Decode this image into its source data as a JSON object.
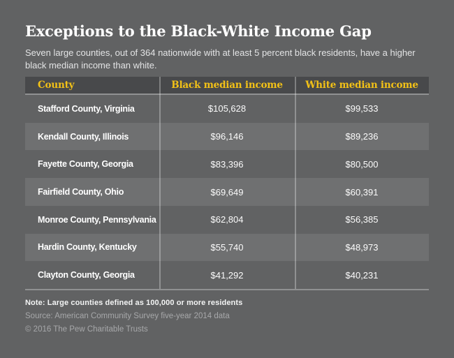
{
  "page": {
    "title": "Exceptions to the Black-White Income Gap",
    "subtitle": "Seven large counties, out of 364 nationwide with at least 5 percent black residents, have a higher black median income than white."
  },
  "colors": {
    "background": "#616263",
    "header_bg": "#48494b",
    "row_alt_bg": "#6f7071",
    "accent_yellow": "#f2c117",
    "title_text": "#ffffff",
    "muted_text": "#a7a8aa",
    "separator": "#8f9092"
  },
  "table": {
    "columns": {
      "county": "County",
      "black_income": "Black median income",
      "white_income": "White median income"
    },
    "rows": [
      {
        "county": "Stafford County, Virginia",
        "black_income": "$105,628",
        "white_income": "$99,533"
      },
      {
        "county": "Kendall County, Illinois",
        "black_income": "$96,146",
        "white_income": "$89,236"
      },
      {
        "county": "Fayette County, Georgia",
        "black_income": "$83,396",
        "white_income": "$80,500"
      },
      {
        "county": "Fairfield County, Ohio",
        "black_income": "$69,649",
        "white_income": "$60,391"
      },
      {
        "county": "Monroe County, Pennsylvania",
        "black_income": "$62,804",
        "white_income": "$56,385"
      },
      {
        "county": "Hardin County, Kentucky",
        "black_income": "$55,740",
        "white_income": "$48,973"
      },
      {
        "county": "Clayton County, Georgia",
        "black_income": "$41,292",
        "white_income": "$40,231"
      }
    ]
  },
  "footer": {
    "note": "Note: Large counties defined as 100,000 or more residents",
    "source": "Source: American Community Survey five-year 2014 data",
    "copyright": "© 2016 The Pew Charitable Trusts"
  },
  "chart_data": {
    "type": "table",
    "title": "Exceptions to the Black-White Income Gap",
    "subtitle": "Seven large counties, out of 364 nationwide with at least 5 percent black residents, have a higher black median income than white.",
    "columns": [
      "County",
      "Black median income",
      "White median income"
    ],
    "rows": [
      [
        "Stafford County, Virginia",
        105628,
        99533
      ],
      [
        "Kendall County, Illinois",
        96146,
        89236
      ],
      [
        "Fayette County, Georgia",
        83396,
        80500
      ],
      [
        "Fairfield County, Ohio",
        69649,
        60391
      ],
      [
        "Monroe County, Pennsylvania",
        62804,
        56385
      ],
      [
        "Hardin County, Kentucky",
        55740,
        48973
      ],
      [
        "Clayton County, Georgia",
        41292,
        40231
      ]
    ],
    "note": "Note: Large counties defined as 100,000 or more residents",
    "source": "Source: American Community Survey five-year 2014 data",
    "copyright": "© 2016 The Pew Charitable Trusts"
  }
}
